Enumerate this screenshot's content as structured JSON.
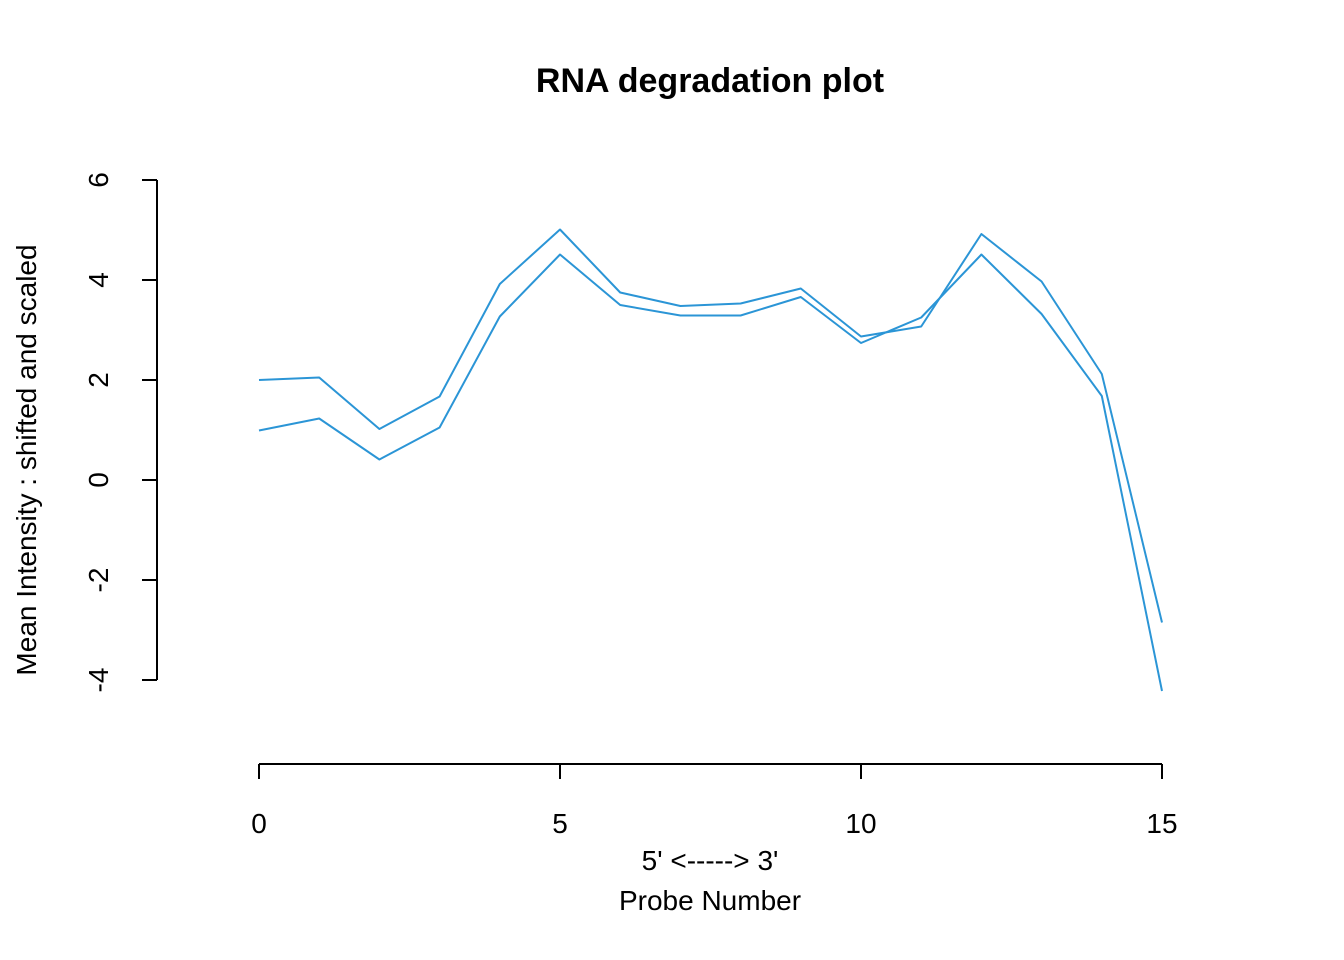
{
  "chart_data": {
    "type": "line",
    "title": "RNA degradation plot",
    "xlabel_line1": "5' <-----> 3'",
    "xlabel_line2": "Probe Number",
    "ylabel": "Mean Intensity : shifted and scaled",
    "xlim": [
      0,
      15
    ],
    "ylim": [
      -4,
      6
    ],
    "xticks": [
      0,
      5,
      10,
      15
    ],
    "yticks": [
      -4,
      -2,
      0,
      2,
      4,
      6
    ],
    "grid": false,
    "line_color": "#2b95d6",
    "x": [
      0,
      1,
      2,
      3,
      4,
      5,
      6,
      7,
      8,
      9,
      10,
      11,
      12,
      13,
      14,
      15
    ],
    "series": [
      {
        "values": [
          2.0,
          2.05,
          1.02,
          1.67,
          3.92,
          5.01,
          3.75,
          3.48,
          3.53,
          3.83,
          2.87,
          3.07,
          4.92,
          3.97,
          2.12,
          -2.85
        ]
      },
      {
        "values": [
          0.99,
          1.23,
          0.41,
          1.05,
          3.27,
          4.51,
          3.5,
          3.29,
          3.29,
          3.66,
          2.74,
          3.25,
          4.51,
          3.32,
          1.68,
          -4.22
        ]
      }
    ]
  }
}
